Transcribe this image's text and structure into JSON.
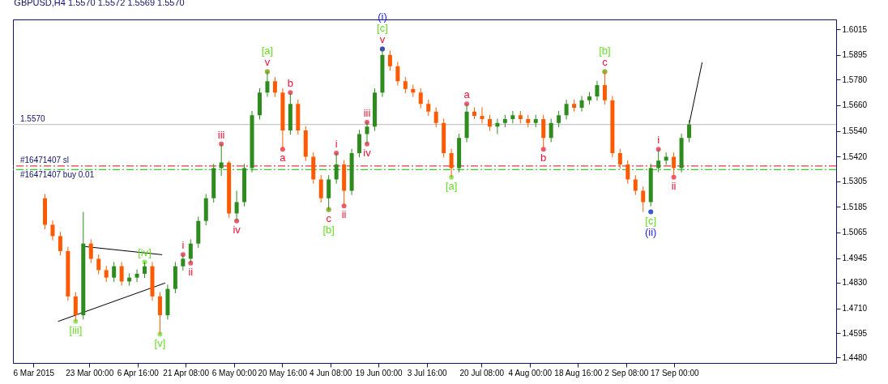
{
  "chart_data": {
    "type": "candlestick",
    "title": "GBPUSD,H4  1.5570 1.5572 1.5569 1.5570",
    "x": [
      "2015-03-09T12:00",
      "2015-03-11T20:00",
      "2015-03-14T04:00",
      "2015-03-16T12:00",
      "2015-03-18T20:00",
      "2015-03-21T04:00",
      "2015-03-23T12:00",
      "2015-03-25T20:00",
      "2015-03-28T04:00",
      "2015-03-30T12:00",
      "2015-04-01T20:00",
      "2015-04-04T04:00",
      "2015-04-06T12:00",
      "2015-04-08T20:00",
      "2015-04-11T04:00",
      "2015-04-13T12:00",
      "2015-04-15T20:00",
      "2015-04-18T04:00",
      "2015-04-20T12:00",
      "2015-04-22T20:00",
      "2015-04-25T04:00",
      "2015-04-27T12:00",
      "2015-04-29T20:00",
      "2015-05-02T04:00",
      "2015-05-04T12:00",
      "2015-05-06T20:00",
      "2015-05-09T04:00",
      "2015-05-11T12:00",
      "2015-05-13T20:00",
      "2015-05-16T04:00",
      "2015-05-18T12:00",
      "2015-05-20T20:00",
      "2015-05-23T04:00",
      "2015-05-25T12:00",
      "2015-05-27T20:00",
      "2015-05-30T04:00",
      "2015-06-01T12:00",
      "2015-06-03T20:00",
      "2015-06-06T04:00",
      "2015-06-08T12:00",
      "2015-06-10T20:00",
      "2015-06-13T04:00",
      "2015-06-15T12:00",
      "2015-06-17T20:00",
      "2015-06-20T04:00",
      "2015-06-22T12:00",
      "2015-06-24T20:00",
      "2015-06-27T04:00",
      "2015-06-29T12:00",
      "2015-07-01T20:00",
      "2015-07-04T04:00",
      "2015-07-06T12:00",
      "2015-07-08T20:00",
      "2015-07-11T04:00",
      "2015-07-13T12:00",
      "2015-07-15T20:00",
      "2015-07-18T04:00",
      "2015-07-20T12:00",
      "2015-07-22T20:00",
      "2015-07-25T04:00",
      "2015-07-27T12:00",
      "2015-07-29T20:00",
      "2015-08-01T04:00",
      "2015-08-03T12:00",
      "2015-08-05T20:00",
      "2015-08-08T04:00",
      "2015-08-10T12:00",
      "2015-08-12T20:00",
      "2015-08-15T04:00",
      "2015-08-17T12:00",
      "2015-08-19T20:00",
      "2015-08-22T04:00",
      "2015-08-24T12:00",
      "2015-08-26T20:00",
      "2015-08-29T04:00",
      "2015-08-31T12:00",
      "2015-09-02T20:00",
      "2015-09-05T04:00",
      "2015-09-07T12:00",
      "2015-09-09T20:00",
      "2015-09-12T04:00",
      "2015-09-14T12:00",
      "2015-09-16T20:00",
      "2015-09-19T04:00",
      "2015-09-21T12:00"
    ],
    "ohlc": [
      [
        1.5225,
        1.5245,
        1.508,
        1.5101
      ],
      [
        1.5101,
        1.5121,
        1.5028,
        1.5048
      ],
      [
        1.5048,
        1.5068,
        1.4958,
        1.4978
      ],
      [
        1.4978,
        1.4998,
        1.4746,
        1.4766
      ],
      [
        1.4766,
        1.4786,
        1.4649,
        1.4678
      ],
      [
        1.4678,
        1.5161,
        1.4658,
        1.5013
      ],
      [
        1.5013,
        1.5033,
        1.4922,
        1.4942
      ],
      [
        1.4942,
        1.4962,
        1.4869,
        1.4889
      ],
      [
        1.4889,
        1.4909,
        1.4834,
        1.4854
      ],
      [
        1.4854,
        1.4927,
        1.4834,
        1.4907
      ],
      [
        1.4907,
        1.4927,
        1.4816,
        1.4836
      ],
      [
        1.4836,
        1.4874,
        1.4816,
        1.4854
      ],
      [
        1.4854,
        1.4892,
        1.4834,
        1.4872
      ],
      [
        1.4872,
        1.4927,
        1.4852,
        1.4907
      ],
      [
        1.4907,
        1.4927,
        1.4746,
        1.4766
      ],
      [
        1.4766,
        1.4786,
        1.4589,
        1.4678
      ],
      [
        1.4678,
        1.4821,
        1.4658,
        1.4801
      ],
      [
        1.4801,
        1.4927,
        1.4781,
        1.4907
      ],
      [
        1.4907,
        1.4962,
        1.4887,
        1.4942
      ],
      [
        1.4942,
        1.5033,
        1.4922,
        1.5013
      ],
      [
        1.5013,
        1.5139,
        1.4993,
        1.5119
      ],
      [
        1.5119,
        1.5245,
        1.5099,
        1.5225
      ],
      [
        1.5225,
        1.5386,
        1.5205,
        1.5366
      ],
      [
        1.5366,
        1.5479,
        1.533,
        1.5392
      ],
      [
        1.5392,
        1.54,
        1.5134,
        1.5154
      ],
      [
        1.5154,
        1.526,
        1.5119,
        1.5207
      ],
      [
        1.5207,
        1.5386,
        1.5187,
        1.5366
      ],
      [
        1.5366,
        1.5633,
        1.5346,
        1.5613
      ],
      [
        1.5613,
        1.5739,
        1.5593,
        1.5719
      ],
      [
        1.5719,
        1.5817,
        1.5699,
        1.5772
      ],
      [
        1.5772,
        1.5792,
        1.5699,
        1.5719
      ],
      [
        1.5719,
        1.5739,
        1.5454,
        1.5542
      ],
      [
        1.5542,
        1.5719,
        1.5522,
        1.5666
      ],
      [
        1.5666,
        1.5686,
        1.5522,
        1.5542
      ],
      [
        1.5542,
        1.5562,
        1.5399,
        1.5419
      ],
      [
        1.5419,
        1.5439,
        1.5293,
        1.5313
      ],
      [
        1.5313,
        1.5333,
        1.5205,
        1.5225
      ],
      [
        1.5225,
        1.5333,
        1.5172,
        1.5313
      ],
      [
        1.5313,
        1.5436,
        1.5293,
        1.5383
      ],
      [
        1.5383,
        1.5403,
        1.5189,
        1.526
      ],
      [
        1.526,
        1.5456,
        1.524,
        1.5436
      ],
      [
        1.5436,
        1.5545,
        1.5416,
        1.5525
      ],
      [
        1.5525,
        1.558,
        1.5479,
        1.556
      ],
      [
        1.556,
        1.5739,
        1.554,
        1.5719
      ],
      [
        1.5719,
        1.5923,
        1.5699,
        1.5895
      ],
      [
        1.5895,
        1.5915,
        1.5822,
        1.5842
      ],
      [
        1.5842,
        1.5862,
        1.5752,
        1.5772
      ],
      [
        1.5772,
        1.5792,
        1.5716,
        1.5736
      ],
      [
        1.5736,
        1.5756,
        1.5699,
        1.5719
      ],
      [
        1.5719,
        1.5739,
        1.5646,
        1.5666
      ],
      [
        1.5666,
        1.5686,
        1.561,
        1.563
      ],
      [
        1.563,
        1.565,
        1.5557,
        1.5577
      ],
      [
        1.5577,
        1.5597,
        1.5416,
        1.5436
      ],
      [
        1.5436,
        1.5456,
        1.5323,
        1.5366
      ],
      [
        1.5366,
        1.5527,
        1.5346,
        1.5507
      ],
      [
        1.5507,
        1.5666,
        1.5487,
        1.563
      ],
      [
        1.563,
        1.565,
        1.5595,
        1.561
      ],
      [
        1.561,
        1.565,
        1.5575,
        1.5595
      ],
      [
        1.5595,
        1.5615,
        1.554,
        1.556
      ],
      [
        1.556,
        1.5597,
        1.5525,
        1.5577
      ],
      [
        1.5577,
        1.5615,
        1.5557,
        1.5595
      ],
      [
        1.5595,
        1.5633,
        1.5575,
        1.5613
      ],
      [
        1.5613,
        1.5633,
        1.5575,
        1.5595
      ],
      [
        1.5595,
        1.5615,
        1.5557,
        1.5577
      ],
      [
        1.5577,
        1.5615,
        1.5557,
        1.5595
      ],
      [
        1.5595,
        1.5615,
        1.5454,
        1.5507
      ],
      [
        1.5507,
        1.5597,
        1.5487,
        1.5577
      ],
      [
        1.5577,
        1.5633,
        1.5557,
        1.5613
      ],
      [
        1.5613,
        1.5686,
        1.5593,
        1.5666
      ],
      [
        1.5666,
        1.5686,
        1.563,
        1.5648
      ],
      [
        1.5648,
        1.5703,
        1.563,
        1.5683
      ],
      [
        1.5683,
        1.5721,
        1.5663,
        1.5701
      ],
      [
        1.5701,
        1.5774,
        1.5681,
        1.5754
      ],
      [
        1.5754,
        1.5817,
        1.5663,
        1.5683
      ],
      [
        1.5683,
        1.5703,
        1.5416,
        1.5436
      ],
      [
        1.5436,
        1.5456,
        1.5363,
        1.5383
      ],
      [
        1.5383,
        1.5403,
        1.5293,
        1.5313
      ],
      [
        1.5313,
        1.5333,
        1.524,
        1.526
      ],
      [
        1.526,
        1.528,
        1.5161,
        1.5207
      ],
      [
        1.5207,
        1.5386,
        1.5187,
        1.5366
      ],
      [
        1.5366,
        1.5454,
        1.5346,
        1.5401
      ],
      [
        1.5401,
        1.5439,
        1.5381,
        1.5419
      ],
      [
        1.5419,
        1.5439,
        1.5323,
        1.5366
      ],
      [
        1.5366,
        1.5527,
        1.5346,
        1.5507
      ],
      [
        1.5507,
        1.559,
        1.5487,
        1.557
      ]
    ],
    "colors": [
      "#ff5a00",
      "#ff5a00",
      "#ff5a00",
      "#ff5a00",
      "#ff5a00",
      "#2e8b1e",
      "#ff5a00",
      "#ff5a00",
      "#ff5a00",
      "#2e8b1e",
      "#ff5a00",
      "#2e8b1e",
      "#2e8b1e",
      "#2e8b1e",
      "#ff5a00",
      "#ff5a00",
      "#2e8b1e",
      "#2e8b1e",
      "#2e8b1e",
      "#2e8b1e",
      "#2e8b1e",
      "#2e8b1e",
      "#2e8b1e",
      "#2e8b1e",
      "#ff5a00",
      "#2e8b1e",
      "#2e8b1e",
      "#2e8b1e",
      "#2e8b1e",
      "#2e8b1e",
      "#ff5a00",
      "#ff5a00",
      "#2e8b1e",
      "#ff5a00",
      "#ff5a00",
      "#ff5a00",
      "#ff5a00",
      "#2e8b1e",
      "#2e8b1e",
      "#ff5a00",
      "#2e8b1e",
      "#2e8b1e",
      "#2e8b1e",
      "#2e8b1e",
      "#2e8b1e",
      "#ff5a00",
      "#ff5a00",
      "#ff5a00",
      "#ff5a00",
      "#ff5a00",
      "#ff5a00",
      "#ff5a00",
      "#ff5a00",
      "#ff5a00",
      "#2e8b1e",
      "#2e8b1e",
      "#ff5a00",
      "#ff5a00",
      "#ff5a00",
      "#2e8b1e",
      "#2e8b1e",
      "#2e8b1e",
      "#ff5a00",
      "#ff5a00",
      "#2e8b1e",
      "#ff5a00",
      "#2e8b1e",
      "#2e8b1e",
      "#2e8b1e",
      "#ff5a00",
      "#2e8b1e",
      "#2e8b1e",
      "#2e8b1e",
      "#ff5a00",
      "#ff5a00",
      "#ff5a00",
      "#ff5a00",
      "#ff5a00",
      "#ff5a00",
      "#2e8b1e",
      "#2e8b1e",
      "#2e8b1e",
      "#ff5a00",
      "#2e8b1e",
      "#2e8b1e"
    ],
    "series": [
      {
        "type": "line",
        "color": "#000000",
        "x": [
          "2015-03-21T04:00",
          "2015-04-14T04:00"
        ],
        "values": [
          1.5,
          1.4961
        ]
      },
      {
        "type": "line",
        "color": "#000000",
        "x": [
          "2015-03-13T11:00",
          "2015-04-15T03:00"
        ],
        "values": [
          1.4649,
          1.4829
        ]
      },
      {
        "type": "line",
        "color": "#000000",
        "x": [
          "2015-09-21T12:00",
          "2015-09-25T11:00"
        ],
        "values": [
          1.557,
          1.586
        ]
      },
      {
        "type": "scatter",
        "marker": "circle",
        "color": "#ee1133",
        "x": [
          "2015-04-20T12:00",
          "2015-04-22T20:00",
          "2015-05-02T04:00",
          "2015-05-06T20:00",
          "2015-05-16T04:00",
          "2015-05-20T20:00",
          "2015-05-23T04:00",
          "2015-06-03T20:00",
          "2015-06-06T04:00",
          "2015-06-08T12:00",
          "2015-06-15T12:00",
          "2015-06-15T12:00",
          "2015-06-20T04:00",
          "2015-07-15T20:00",
          "2015-08-08T04:00",
          "2015-08-26T20:00",
          "2015-09-12T04:00",
          "2015-09-16T20:00"
        ],
        "values": [
          1.4962,
          1.4922,
          1.5479,
          1.5119,
          1.5817,
          1.5454,
          1.5719,
          1.5172,
          1.5436,
          1.5189,
          1.558,
          1.5479,
          1.5923,
          1.5666,
          1.5454,
          1.5817,
          1.5454,
          1.5323
        ],
        "value_labels": [
          "i",
          "ii",
          "iii",
          "iv",
          "v",
          "a",
          "b",
          "c",
          "i",
          "ii",
          "iii",
          "iv",
          "v",
          "a",
          "b",
          "c",
          "i",
          "ii"
        ]
      },
      {
        "type": "scatter",
        "marker": "circle",
        "color": "#66dd22",
        "x": [
          "2015-03-18T20:00",
          "2015-04-08T20:00",
          "2015-04-13T12:00",
          "2015-05-16T04:00",
          "2015-06-03T20:00",
          "2015-06-20T04:00",
          "2015-07-11T04:00",
          "2015-08-26T20:00",
          "2015-09-09T20:00"
        ],
        "values": [
          1.4649,
          1.4927,
          1.4589,
          1.5817,
          1.5172,
          1.5923,
          1.5323,
          1.5817,
          1.5161
        ],
        "value_labels": [
          "[iii]",
          "[iv]",
          "[v]",
          "[a]",
          "[b]",
          "[c]",
          "[a]",
          "[b]",
          "[c]"
        ]
      },
      {
        "type": "scatter",
        "marker": "circle",
        "color": "#1a1aff",
        "x": [
          "2015-06-20T04:00",
          "2015-09-09T20:00"
        ],
        "values": [
          1.5923,
          1.5161
        ],
        "value_labels": [
          "(i)",
          "(ii)"
        ]
      }
    ],
    "xlim": [
      "2015-03-01T00:00",
      "2015-11-04T00:00"
    ],
    "xticks": [
      {
        "value": "2015-03-06T00:00",
        "label": "6 Mar 2015"
      },
      {
        "value": "2015-03-23T00:00",
        "label": "23 Mar 00:00"
      },
      {
        "value": "2015-04-06T16:00",
        "label": "6 Apr 16:00"
      },
      {
        "value": "2015-04-21T08:00",
        "label": "21 Apr 08:00"
      },
      {
        "value": "2015-05-06T00:00",
        "label": "6 May 00:00"
      },
      {
        "value": "2015-05-20T16:00",
        "label": "20 May 16:00"
      },
      {
        "value": "2015-06-04T08:00",
        "label": "4 Jun 08:00"
      },
      {
        "value": "2015-06-19T00:00",
        "label": "19 Jun 00:00"
      },
      {
        "value": "2015-07-03T16:00",
        "label": "3 Jul 16:00"
      },
      {
        "value": "2015-07-20T08:00",
        "label": "20 Jul 08:00"
      },
      {
        "value": "2015-08-04T00:00",
        "label": "4 Aug 00:00"
      },
      {
        "value": "2015-08-18T16:00",
        "label": "18 Aug 16:00"
      },
      {
        "value": "2015-09-02T08:00",
        "label": "2 Sep 08:00"
      },
      {
        "value": "2015-09-17T00:00",
        "label": "17 Sep 00:00"
      }
    ],
    "ylim": [
      1.4455,
      1.6061
    ],
    "yticks": [
      {
        "value": 1.448,
        "label": "1.4480"
      },
      1.4595,
      {
        "value": 1.471,
        "label": "1.4710"
      },
      {
        "value": 1.483,
        "label": "1.4830"
      },
      1.4945,
      1.5065,
      1.5185,
      1.5305,
      {
        "value": 1.542,
        "label": "1.5420"
      },
      {
        "value": 1.554,
        "label": "1.5540"
      },
      {
        "value": 1.566,
        "label": "1.5660"
      },
      {
        "value": 1.578,
        "label": "1.5780"
      },
      1.5895,
      1.6015
    ],
    "ref_lines": [
      {
        "axis": "y",
        "value": 1.5376,
        "label": "#16471407 sl",
        "color": "#e8383d",
        "line_style": "dashed"
      },
      {
        "axis": "y",
        "value": 1.5359,
        "label": "#16471407 buy 0.01",
        "color": "#33cc33",
        "line_style": "dashed"
      },
      {
        "axis": "y",
        "value": 1.557,
        "label": "1.5570",
        "color": "#c8c8c8",
        "line_style": "solid"
      }
    ]
  }
}
